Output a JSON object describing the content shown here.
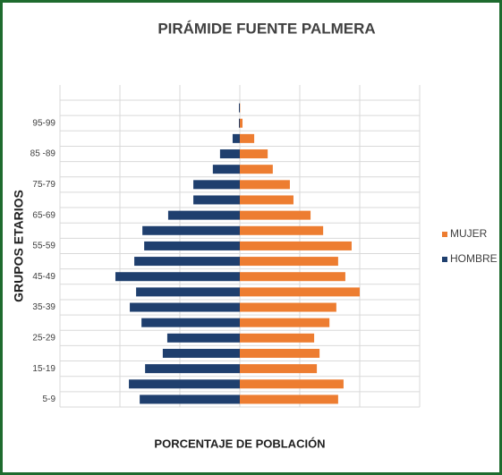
{
  "chart_data": {
    "type": "bar",
    "orientation": "horizontal",
    "stacked": true,
    "title": "PIRÁMIDE FUENTE PALMERA",
    "xlabel": "PORCENTAJE DE POBLACIÓN",
    "ylabel": "GRUPOS ETARIOS",
    "categories": [
      "5-9",
      null,
      "15-19",
      null,
      "25-29",
      null,
      "35-39",
      null,
      "45-49",
      null,
      "55-59",
      null,
      "65-69",
      null,
      "75-79",
      null,
      "85 -89",
      null,
      "95-99",
      null
    ],
    "series": [
      {
        "name": "MUJER",
        "color": "#ed7d31",
        "values": [
          3.28,
          3.46,
          2.57,
          2.66,
          2.48,
          2.99,
          3.22,
          4.0,
          3.52,
          3.28,
          3.73,
          2.78,
          2.36,
          1.79,
          1.67,
          1.1,
          0.93,
          0.48,
          0.09,
          0.01
        ]
      },
      {
        "name": "HOMBRE",
        "color": "#1f3f6e",
        "values": [
          -3.34,
          -3.7,
          -3.16,
          -2.57,
          -2.42,
          -3.28,
          -3.67,
          -3.46,
          -4.15,
          -3.52,
          -3.19,
          -3.25,
          -2.39,
          -1.55,
          -1.55,
          -0.9,
          -0.66,
          -0.24,
          -0.03,
          -0.03
        ]
      }
    ],
    "xlim": [
      -6,
      6
    ],
    "xticks": [
      -6,
      -4,
      -2,
      0,
      2,
      4,
      6
    ],
    "grid": true,
    "legend": "right"
  }
}
